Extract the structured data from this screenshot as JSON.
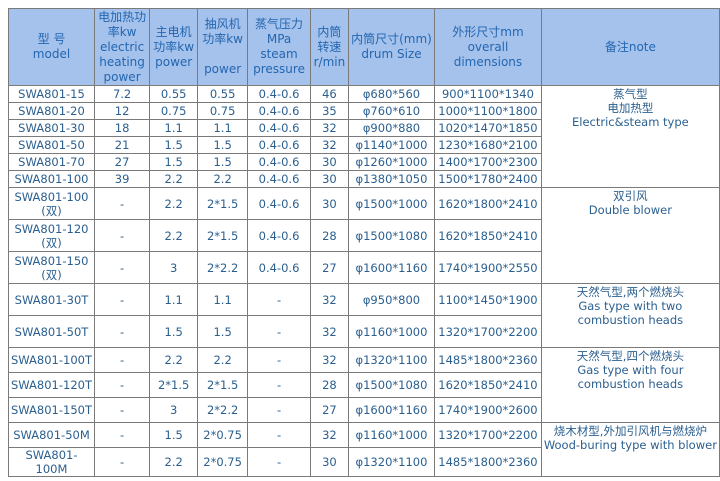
{
  "headers": [
    "型 号\nmodel",
    "电加热功率kw\nelectric\nheating\npower",
    "主电机\n功率kw\npower",
    "抽风机\n功率kw\n\npower",
    "蒸气压力\nMPa\nsteam\npressure",
    "内筒\n转速\nr/min",
    "内筒尺寸(mm)\ndrum Size",
    "外形尺寸mm\noverall\ndimensions",
    "备注note"
  ],
  "rows": [
    [
      "SWA801-15",
      "7.2",
      "0.55",
      "0.55",
      "0.4-0.6",
      "46",
      "φ680*560",
      "900*1100*1340"
    ],
    [
      "SWA801-20",
      "12",
      "0.75",
      "0.75",
      "0.4-0.6",
      "35",
      "φ760*610",
      "1000*1100*1800"
    ],
    [
      "SWA801-30",
      "18",
      "1.1",
      "1.1",
      "0.4-0.6",
      "32",
      "φ900*880",
      "1020*1470*1850"
    ],
    [
      "SWA801-50",
      "21",
      "1.5",
      "1.5",
      "0.4-0.6",
      "32",
      "φ1140*1000",
      "1230*1680*2100"
    ],
    [
      "SWA801-70",
      "27",
      "1.5",
      "1.5",
      "0.4-0.6",
      "30",
      "φ1260*1000",
      "1400*1700*2300"
    ],
    [
      "SWA801-100",
      "39",
      "2.2",
      "2.2",
      "0.4-0.6",
      "30",
      "φ1380*1050",
      "1500*1780*2400"
    ],
    [
      "SWA801-100\n(双)",
      "-",
      "2.2",
      "2*1.5",
      "0.4-0.6",
      "30",
      "φ1500*1000",
      "1620*1800*2410"
    ],
    [
      "SWA801-120\n(双)",
      "-",
      "2.2",
      "2*1.5",
      "0.4-0.6",
      "28",
      "φ1500*1080",
      "1620*1850*2410"
    ],
    [
      "SWA801-150\n(双)",
      "-",
      "3",
      "2*2.2",
      "0.4-0.6",
      "27",
      "φ1600*1160",
      "1740*1900*2550"
    ],
    [
      "SWA801-30T",
      "-",
      "1.1",
      "1.1",
      "-",
      "32",
      "φ950*800",
      "1100*1450*1900"
    ],
    [
      "SWA801-50T",
      "-",
      "1.5",
      "1.5",
      "-",
      "32",
      "φ1160*1000",
      "1320*1700*2200"
    ],
    [
      "SWA801-100T",
      "-",
      "2.2",
      "2.2",
      "-",
      "32",
      "φ1320*1100",
      "1485*1800*2360"
    ],
    [
      "SWA801-120T",
      "-",
      "2*1.5",
      "2*1.5",
      "-",
      "28",
      "φ1500*1080",
      "1620*1850*2410"
    ],
    [
      "SWA801-150T",
      "-",
      "3",
      "2*2.2",
      "-",
      "27",
      "φ1600*1160",
      "1740*1900*2600"
    ],
    [
      "SWA801-50M",
      "-",
      "1.5",
      "2*0.75",
      "-",
      "32",
      "φ1160*1000",
      "1320*1700*2200"
    ],
    [
      "SWA801-100M",
      "-",
      "2.2",
      "2*0.75",
      "-",
      "30",
      "φ1320*1100",
      "1485*1800*2360"
    ]
  ],
  "notes": [
    {
      "start": 0,
      "span": 6,
      "text": "蒸气型\n电加热型\nElectric&steam type"
    },
    {
      "start": 6,
      "span": 3,
      "text": "双引风\nDouble blower"
    },
    {
      "start": 9,
      "span": 2,
      "text": "天然气型,两个燃烧头\nGas type with two combustion heads"
    },
    {
      "start": 11,
      "span": 3,
      "text": "天然气型,四个燃烧头\nGas type with four combustion heads"
    },
    {
      "start": 14,
      "span": 2,
      "text": "烧木材型,外加引风机与燃烧炉\nWood-buring type with blower"
    }
  ]
}
